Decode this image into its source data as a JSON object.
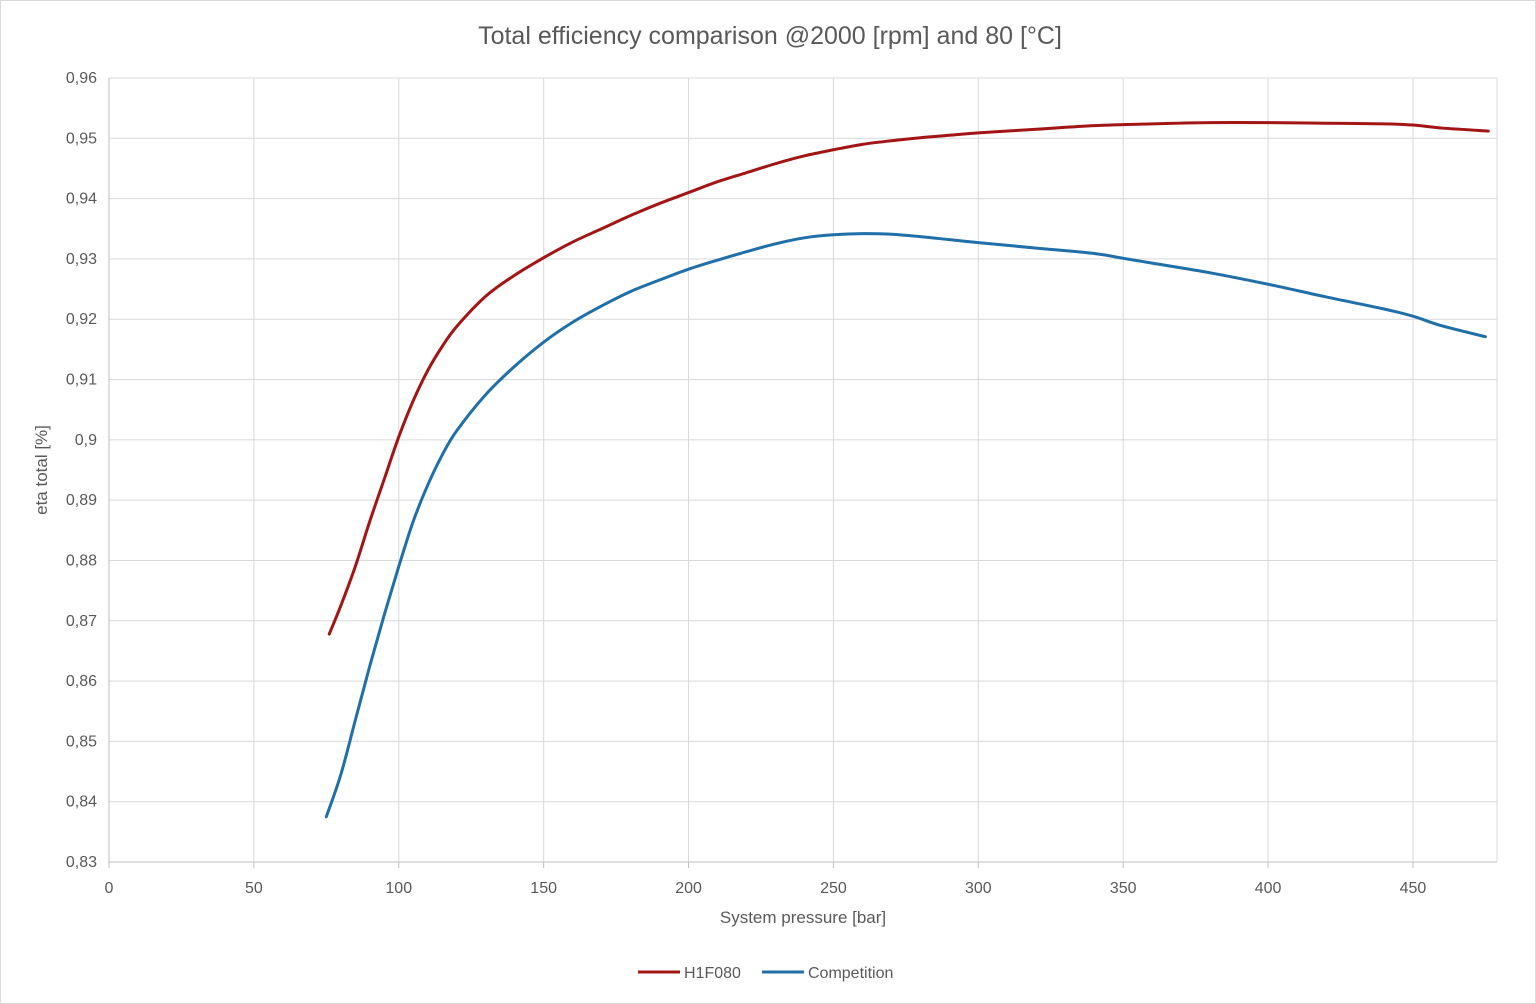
{
  "chart_data": {
    "type": "line",
    "title": "Total efficiency comparison @2000 [rpm] and 80 [°C]",
    "xlabel": "System pressure [bar]",
    "ylabel": "eta total [%]",
    "xlim": [
      0,
      479
    ],
    "ylim": [
      0.83,
      0.96
    ],
    "x_ticks": [
      "0",
      "50",
      "100",
      "150",
      "200",
      "250",
      "300",
      "350",
      "400",
      "450"
    ],
    "x_tick_values": [
      0,
      50,
      100,
      150,
      200,
      250,
      300,
      350,
      400,
      450
    ],
    "y_ticks": [
      "0,83",
      "0,84",
      "0,85",
      "0,86",
      "0,87",
      "0,88",
      "0,89",
      "0,9",
      "0,91",
      "0,92",
      "0,93",
      "0,94",
      "0,95",
      "0,96"
    ],
    "y_tick_values": [
      0.83,
      0.84,
      0.85,
      0.86,
      0.87,
      0.88,
      0.89,
      0.9,
      0.91,
      0.92,
      0.93,
      0.94,
      0.95,
      0.96
    ],
    "grid": true,
    "legend_position": "bottom",
    "series": [
      {
        "name": "H1F080",
        "color": "#a31515",
        "points": [
          [
            76,
            0.8678
          ],
          [
            80,
            0.8725
          ],
          [
            85,
            0.879
          ],
          [
            90,
            0.8865
          ],
          [
            95,
            0.8935
          ],
          [
            100,
            0.9005
          ],
          [
            105,
            0.9065
          ],
          [
            110,
            0.9115
          ],
          [
            115,
            0.9155
          ],
          [
            120,
            0.9188
          ],
          [
            130,
            0.9238
          ],
          [
            140,
            0.9273
          ],
          [
            150,
            0.9302
          ],
          [
            160,
            0.9328
          ],
          [
            170,
            0.935
          ],
          [
            180,
            0.9372
          ],
          [
            190,
            0.9392
          ],
          [
            200,
            0.941
          ],
          [
            210,
            0.9428
          ],
          [
            220,
            0.9443
          ],
          [
            230,
            0.9458
          ],
          [
            240,
            0.9471
          ],
          [
            250,
            0.9481
          ],
          [
            260,
            0.949
          ],
          [
            270,
            0.9496
          ],
          [
            280,
            0.9501
          ],
          [
            290,
            0.9505
          ],
          [
            300,
            0.9509
          ],
          [
            320,
            0.9515
          ],
          [
            340,
            0.9521
          ],
          [
            360,
            0.9524
          ],
          [
            380,
            0.9526
          ],
          [
            400,
            0.9526
          ],
          [
            420,
            0.9525
          ],
          [
            440,
            0.9524
          ],
          [
            450,
            0.9522
          ],
          [
            460,
            0.9517
          ],
          [
            476,
            0.9512
          ]
        ]
      },
      {
        "name": "Competition",
        "color": "#1f6fa8",
        "points": [
          [
            75,
            0.8375
          ],
          [
            80,
            0.8445
          ],
          [
            85,
            0.8535
          ],
          [
            90,
            0.8625
          ],
          [
            95,
            0.871
          ],
          [
            100,
            0.879
          ],
          [
            105,
            0.8865
          ],
          [
            110,
            0.8925
          ],
          [
            115,
            0.8975
          ],
          [
            120,
            0.9015
          ],
          [
            130,
            0.9075
          ],
          [
            140,
            0.9122
          ],
          [
            150,
            0.9162
          ],
          [
            160,
            0.9195
          ],
          [
            170,
            0.9222
          ],
          [
            180,
            0.9246
          ],
          [
            190,
            0.9265
          ],
          [
            200,
            0.9283
          ],
          [
            210,
            0.9298
          ],
          [
            220,
            0.9312
          ],
          [
            230,
            0.9325
          ],
          [
            240,
            0.9335
          ],
          [
            250,
            0.934
          ],
          [
            260,
            0.9342
          ],
          [
            270,
            0.9341
          ],
          [
            280,
            0.9337
          ],
          [
            290,
            0.9332
          ],
          [
            300,
            0.9327
          ],
          [
            320,
            0.9318
          ],
          [
            340,
            0.9309
          ],
          [
            350,
            0.9301
          ],
          [
            360,
            0.9293
          ],
          [
            380,
            0.9277
          ],
          [
            400,
            0.9258
          ],
          [
            420,
            0.9237
          ],
          [
            440,
            0.9217
          ],
          [
            450,
            0.9205
          ],
          [
            460,
            0.9189
          ],
          [
            475,
            0.9171
          ]
        ]
      }
    ]
  }
}
